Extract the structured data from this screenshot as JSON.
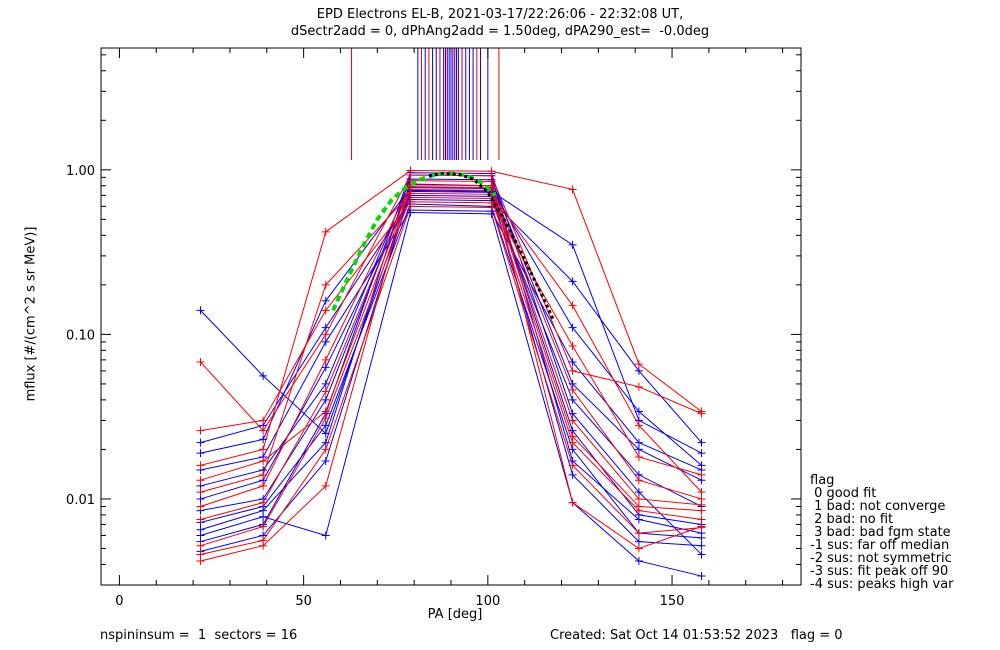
{
  "title": {
    "line1": "EPD Electrons EL-B, 2021-03-17/22:26:06 - 22:32:08 UT,",
    "line2": "dSectr2add = 0, dPhAng2add = 1.50deg, dPA290_est=  -0.0deg"
  },
  "footer": {
    "left": "nspininsum =  1  sectors = 16",
    "right": "Created: Sat Oct 14 01:53:52 2023   flag = 0"
  },
  "legend": {
    "title": "flag",
    "items": [
      " 0 good fit",
      " 1 bad: not converge",
      " 2 bad: no fit",
      " 3 bad: bad fgm state",
      "-1 sus: far off median",
      "-2 sus: not symmetric",
      "-3 sus: fit peak off 90",
      "-4 sus: peaks high var"
    ]
  },
  "colors": {
    "series_a": "#0000ff",
    "series_b": "#ff0000",
    "fit_green": "#00dd00",
    "fit_black": "#000000"
  },
  "chart_data": {
    "type": "scatter",
    "xlabel": "PA [deg]",
    "ylabel": "mflux [#/(cm^2 s sr MeV)]",
    "xlim": [
      -5,
      185
    ],
    "ylim": [
      0.003,
      5.5
    ],
    "yscale": "log",
    "xticks": [
      0,
      50,
      100,
      150
    ],
    "xtick_labels": [
      "0",
      "50",
      "100",
      "150"
    ],
    "yticks": [
      0.01,
      0.1,
      1.0
    ],
    "ytick_labels": [
      "0.01",
      "0.10",
      "1.00"
    ],
    "pa_bins": [
      22,
      39,
      56,
      79,
      101,
      123,
      141,
      158
    ],
    "series": [
      {
        "color": "blue",
        "values": [
          0.0055,
          0.007,
          0.033,
          0.96,
          0.95,
          0.033,
          0.011,
          0.0046
        ]
      },
      {
        "color": "blue",
        "values": [
          0.0065,
          0.0085,
          0.022,
          0.93,
          0.92,
          0.017,
          0.0075,
          0.0062
        ]
      },
      {
        "color": "blue",
        "values": [
          0.012,
          0.015,
          0.05,
          0.88,
          0.87,
          0.05,
          0.02,
          0.013
        ]
      },
      {
        "color": "blue",
        "values": [
          0.0085,
          0.01,
          0.04,
          0.82,
          0.8,
          0.026,
          0.008,
          0.007
        ]
      },
      {
        "color": "blue",
        "values": [
          0.019,
          0.023,
          0.16,
          0.78,
          0.77,
          0.11,
          0.034,
          0.016
        ]
      },
      {
        "color": "blue",
        "values": [
          0.0048,
          0.006,
          0.017,
          0.74,
          0.73,
          0.014,
          0.0055,
          0.0052
        ]
      },
      {
        "color": "blue",
        "values": [
          0.01,
          0.013,
          0.063,
          0.7,
          0.69,
          0.04,
          0.014,
          0.009
        ]
      },
      {
        "color": "blue",
        "values": [
          0.022,
          0.028,
          0.11,
          0.66,
          0.65,
          0.21,
          0.06,
          0.022
        ]
      },
      {
        "color": "blue",
        "values": [
          0.0072,
          0.009,
          0.028,
          0.62,
          0.6,
          0.02,
          0.0062,
          0.0058
        ]
      },
      {
        "color": "blue",
        "values": [
          0.015,
          0.018,
          0.09,
          0.57,
          0.56,
          0.068,
          0.022,
          0.015
        ]
      },
      {
        "color": "blue",
        "values": [
          0.006,
          0.0078,
          0.006,
          0.55,
          0.54,
          0.0095,
          0.0042,
          0.0034
        ]
      },
      {
        "color": "blue",
        "values": [
          0.14,
          0.056,
          0.025,
          0.75,
          0.74,
          0.35,
          0.03,
          0.019
        ]
      },
      {
        "color": "red",
        "values": [
          0.0042,
          0.0052,
          0.012,
          0.86,
          0.85,
          0.0095,
          0.005,
          0.0068
        ]
      },
      {
        "color": "red",
        "values": [
          0.016,
          0.02,
          0.42,
          0.99,
          0.98,
          0.76,
          0.066,
          0.034
        ]
      },
      {
        "color": "red",
        "values": [
          0.0075,
          0.0095,
          0.045,
          0.79,
          0.78,
          0.03,
          0.01,
          0.0092
        ]
      },
      {
        "color": "red",
        "values": [
          0.011,
          0.014,
          0.2,
          0.72,
          0.71,
          0.15,
          0.028,
          0.011
        ]
      },
      {
        "color": "red",
        "values": [
          0.0052,
          0.0068,
          0.031,
          0.68,
          0.67,
          0.022,
          0.0085,
          0.0075
        ]
      },
      {
        "color": "red",
        "values": [
          0.026,
          0.03,
          0.14,
          0.64,
          0.63,
          0.085,
          0.018,
          0.014
        ]
      },
      {
        "color": "red",
        "values": [
          0.009,
          0.012,
          0.07,
          0.81,
          0.8,
          0.046,
          0.013,
          0.01
        ]
      },
      {
        "color": "red",
        "values": [
          0.0046,
          0.0056,
          0.02,
          0.6,
          0.59,
          0.016,
          0.0062,
          0.0067
        ]
      },
      {
        "color": "red",
        "values": [
          0.068,
          0.026,
          0.1,
          0.93,
          0.92,
          0.06,
          0.048,
          0.033
        ]
      },
      {
        "color": "red",
        "values": [
          0.013,
          0.017,
          0.034,
          0.76,
          0.75,
          0.024,
          0.009,
          0.0085
        ]
      }
    ],
    "fit_green": {
      "x": [
        58,
        62,
        66,
        70,
        74,
        78,
        82,
        86,
        90,
        94,
        98,
        102
      ],
      "y": [
        0.14,
        0.22,
        0.34,
        0.5,
        0.66,
        0.79,
        0.88,
        0.94,
        0.95,
        0.93,
        0.84,
        0.7
      ]
    },
    "fit_black": {
      "x": [
        84,
        88,
        92,
        96,
        100,
        104,
        108,
        112,
        116,
        118
      ],
      "y": [
        0.92,
        0.95,
        0.94,
        0.88,
        0.73,
        0.52,
        0.35,
        0.23,
        0.15,
        0.12
      ]
    },
    "vlines_blue": [
      81,
      83,
      85,
      86,
      87,
      88,
      88.5,
      89,
      89.5,
      90,
      90.5,
      91,
      91.5,
      92,
      93,
      94,
      95,
      96,
      98,
      100
    ],
    "vlines_red": [
      63,
      82,
      84,
      87,
      89,
      91,
      93,
      97,
      103
    ]
  }
}
